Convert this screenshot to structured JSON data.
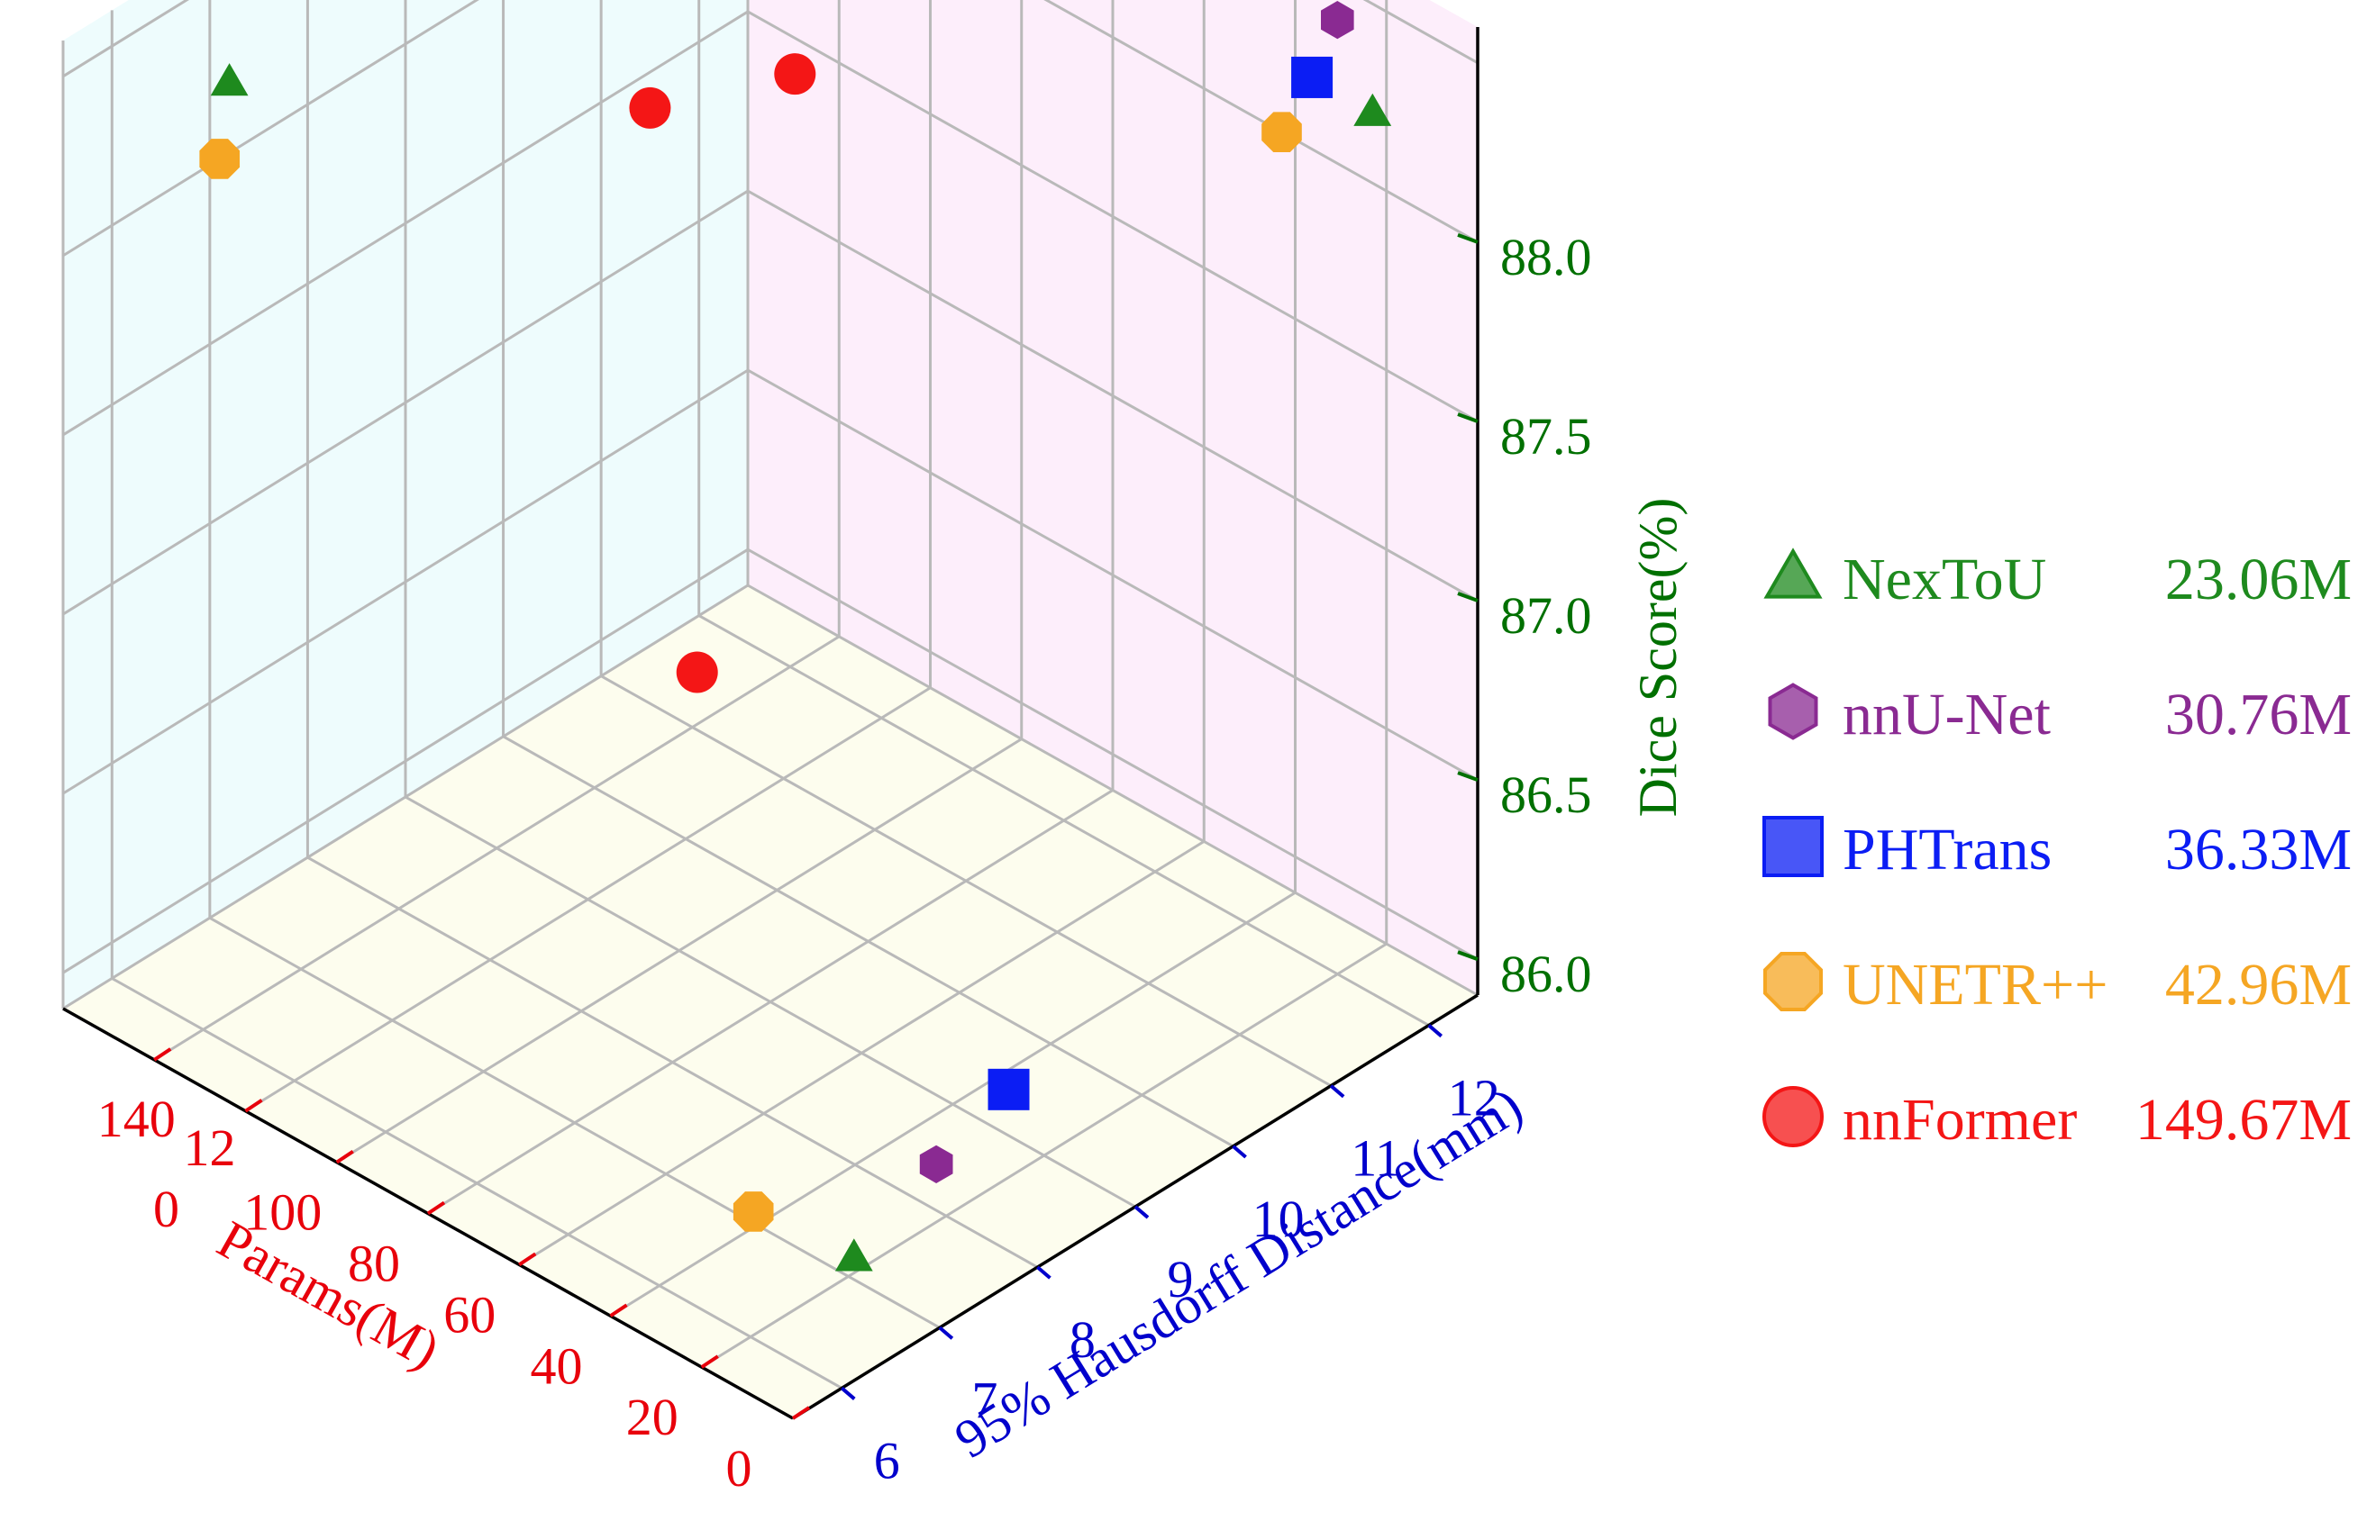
{
  "chart_data": {
    "type": "scatter",
    "projection": "3d",
    "axes": {
      "x": {
        "label": "Params(M)",
        "ticks": [
          "0",
          "20",
          "40",
          "60",
          "80",
          "100",
          "12\n0",
          "140"
        ],
        "range": [
          0,
          160
        ],
        "color": "#e8000b"
      },
      "y": {
        "label": "95% Hausdorff Distance(mm)",
        "ticks": [
          "6",
          "7",
          "8",
          "9",
          "10",
          "11",
          "12"
        ],
        "range": [
          5.5,
          12.5
        ],
        "color": "#0000cc"
      },
      "z": {
        "label": "Dice Score(%)",
        "ticks": [
          "86.0",
          "86.5",
          "87.0",
          "87.5",
          "88.0"
        ],
        "range": [
          85.9,
          88.6
        ],
        "color": "#007000"
      }
    },
    "grid": true,
    "pane_colors": {
      "left": "#eefcfd",
      "right": "#fdeefb",
      "floor": "#fdfdee"
    },
    "legend_position": "right",
    "series": [
      {
        "name": "NexToU",
        "params": "23.06M",
        "marker": "triangle",
        "color": "#1e8a1e",
        "x": 23.06,
        "y": 7.2,
        "z": 88.2
      },
      {
        "name": "nnU-Net",
        "params": "30.76M",
        "marker": "hexagon",
        "color": "#8a2a92",
        "x": 30.76,
        "y": 8.4,
        "z": 88.4
      },
      {
        "name": "PHTrans",
        "params": "36.33M",
        "marker": "square",
        "color": "#0b1df4",
        "x": 36.33,
        "y": 9.4,
        "z": 88.2
      },
      {
        "name": "UNETR++",
        "params": "42.96M",
        "marker": "octagon",
        "color": "#f5a623",
        "x": 42.96,
        "y": 7.1,
        "z": 88.0
      },
      {
        "name": "nnFormer",
        "params": "149.67M",
        "marker": "circle",
        "color": "#f41616",
        "x": 149.67,
        "y": 11.5,
        "z": 87.4
      }
    ]
  }
}
